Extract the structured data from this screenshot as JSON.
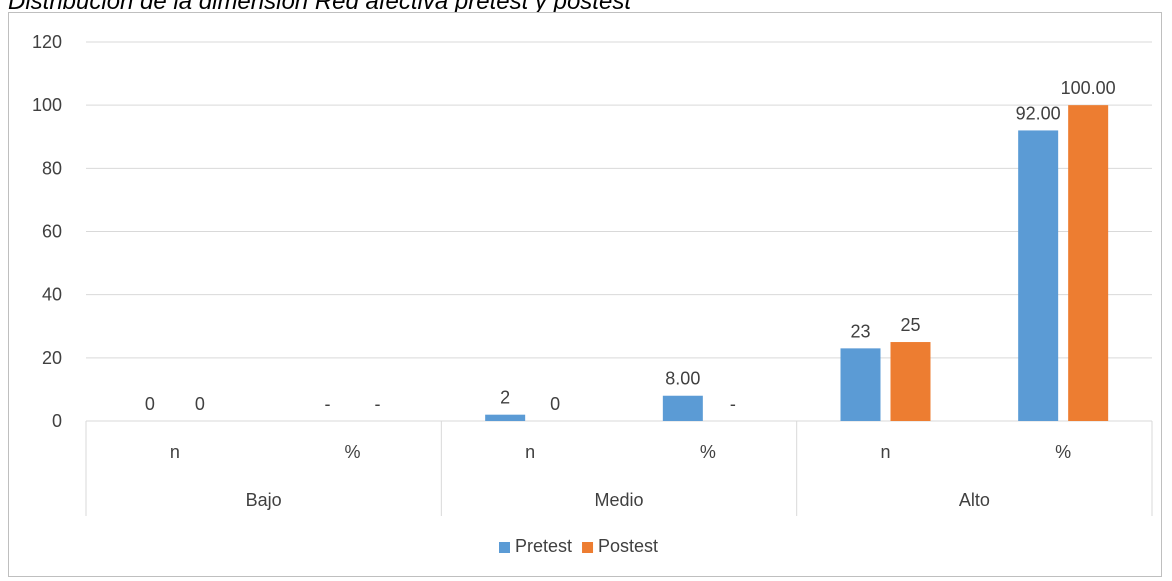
{
  "title": "Distribución de la dimensión Red afectiva pretest y postest",
  "colors": {
    "pretest": "#5b9bd5",
    "postest": "#ed7d31",
    "grid": "#d9d9d9",
    "text": "#404040"
  },
  "chart_data": {
    "type": "bar",
    "groups": [
      "Bajo",
      "Medio",
      "Alto"
    ],
    "subcategories": [
      "n",
      "%",
      "n",
      "%",
      "n",
      "%"
    ],
    "series": [
      {
        "name": "Pretest",
        "values": [
          0,
          null,
          2,
          8.0,
          23,
          92.0
        ],
        "labels": [
          "0",
          "-",
          "2",
          "8.00",
          "23",
          "92.00"
        ]
      },
      {
        "name": "Postest",
        "values": [
          0,
          null,
          0,
          null,
          25,
          100.0
        ],
        "labels": [
          "0",
          "-",
          "0",
          "-",
          "25",
          "100.00"
        ]
      }
    ],
    "ylim": [
      0,
      120
    ],
    "yticks": [
      "0",
      "20",
      "40",
      "60",
      "80",
      "100",
      "120"
    ],
    "grid": true,
    "legend": "bottom"
  }
}
